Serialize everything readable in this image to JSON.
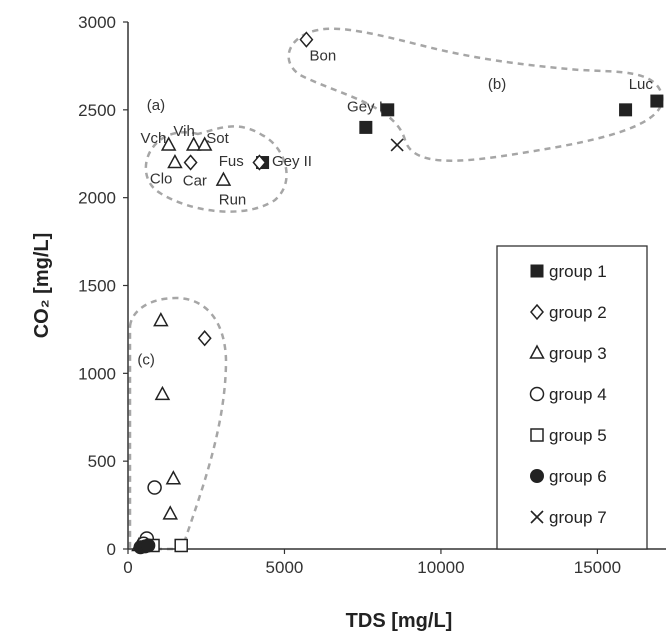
{
  "chart_data": {
    "type": "scatter",
    "xlabel": "TDS [mg/L]",
    "ylabel": "CO₂ [mg/L]",
    "xlim": [
      0,
      17000
    ],
    "ylim": [
      0,
      3000
    ],
    "x_ticks": [
      0,
      5000,
      10000,
      15000
    ],
    "y_ticks": [
      0,
      500,
      1000,
      1500,
      2000,
      2500,
      3000
    ],
    "grid": false,
    "legend_position": "right",
    "series": [
      {
        "name": "group 1",
        "marker": "filled-square",
        "points": [
          {
            "x": 4300,
            "y": 2200
          },
          {
            "x": 7600,
            "y": 2400
          },
          {
            "x": 8300,
            "y": 2500
          },
          {
            "x": 15900,
            "y": 2500
          },
          {
            "x": 16900,
            "y": 2550
          }
        ]
      },
      {
        "name": "group 2",
        "marker": "open-diamond",
        "points": [
          {
            "x": 5700,
            "y": 2900
          },
          {
            "x": 4200,
            "y": 2200
          },
          {
            "x": 2000,
            "y": 2200
          },
          {
            "x": 2450,
            "y": 1200
          }
        ]
      },
      {
        "name": "group 3",
        "marker": "open-triangle",
        "points": [
          {
            "x": 1300,
            "y": 2300
          },
          {
            "x": 2100,
            "y": 2300
          },
          {
            "x": 2450,
            "y": 2300
          },
          {
            "x": 1500,
            "y": 2200
          },
          {
            "x": 3050,
            "y": 2100
          },
          {
            "x": 1050,
            "y": 1300
          },
          {
            "x": 1100,
            "y": 880
          },
          {
            "x": 1450,
            "y": 400
          },
          {
            "x": 1350,
            "y": 200
          },
          {
            "x": 350,
            "y": 20
          },
          {
            "x": 600,
            "y": 50
          }
        ]
      },
      {
        "name": "group 4",
        "marker": "open-circle",
        "points": [
          {
            "x": 850,
            "y": 350
          },
          {
            "x": 600,
            "y": 60
          },
          {
            "x": 500,
            "y": 30
          }
        ]
      },
      {
        "name": "group 5",
        "marker": "open-square",
        "points": [
          {
            "x": 1700,
            "y": 20
          },
          {
            "x": 800,
            "y": 20
          }
        ]
      },
      {
        "name": "group 6",
        "marker": "filled-circle",
        "points": [
          {
            "x": 400,
            "y": 10
          },
          {
            "x": 550,
            "y": 15
          },
          {
            "x": 650,
            "y": 20
          }
        ]
      },
      {
        "name": "group 7",
        "marker": "cross",
        "points": [
          {
            "x": 8600,
            "y": 2300
          }
        ]
      }
    ],
    "annotations": [
      {
        "text": "Bon",
        "x": 5800,
        "y": 2780
      },
      {
        "text": "Gey I",
        "x": 7000,
        "y": 2490
      },
      {
        "text": "Luc",
        "x": 16000,
        "y": 2620
      },
      {
        "text": "Vch",
        "x": 400,
        "y": 2310
      },
      {
        "text": "Vih",
        "x": 1450,
        "y": 2350
      },
      {
        "text": "Sot",
        "x": 2500,
        "y": 2310
      },
      {
        "text": "Fus",
        "x": 2900,
        "y": 2180
      },
      {
        "text": "Gey II",
        "x": 4600,
        "y": 2180
      },
      {
        "text": "Clo",
        "x": 700,
        "y": 2080
      },
      {
        "text": "Car",
        "x": 1750,
        "y": 2070
      },
      {
        "text": "Run",
        "x": 2900,
        "y": 1960
      }
    ],
    "region_labels": [
      {
        "text": "(a)",
        "x": 600,
        "y": 2500
      },
      {
        "text": "(b)",
        "x": 11500,
        "y": 2620
      },
      {
        "text": "(c)",
        "x": 300,
        "y": 1050
      }
    ]
  }
}
